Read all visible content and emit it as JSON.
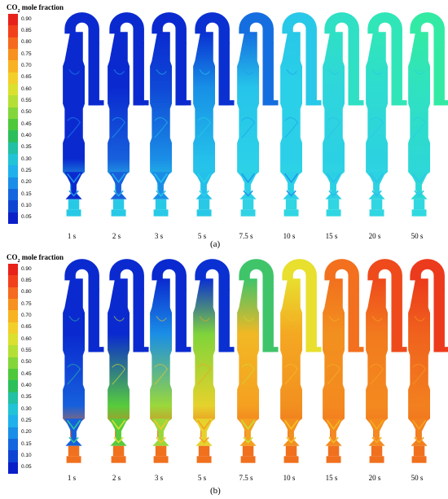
{
  "colorbar": {
    "title_main": "CO",
    "title_sub": "2",
    "title_rest": " mole fraction",
    "ticks": [
      "0.90",
      "0.85",
      "0.80",
      "0.75",
      "0.70",
      "0.65",
      "0.60",
      "0.55",
      "0.50",
      "0.45",
      "0.40",
      "0.35",
      "0.30",
      "0.25",
      "0.20",
      "0.15",
      "0.10",
      "0.05"
    ],
    "colors": [
      "#e8211a",
      "#f2401c",
      "#f56a1e",
      "#f7911f",
      "#f9b222",
      "#f3cf2a",
      "#dbe02f",
      "#b4e035",
      "#83d63a",
      "#4fc83c",
      "#2bbf5c",
      "#22c0a4",
      "#21c3d6",
      "#1fb1ec",
      "#198ee8",
      "#1466de",
      "#0f44d3",
      "#0a1fc8"
    ]
  },
  "times": [
    "1 s",
    "2 s",
    "3 s",
    "5 s",
    "7.5 s",
    "10 s",
    "15 s",
    "20 s",
    "50 s"
  ],
  "panel_a": {
    "label": "(a)",
    "frames": [
      {
        "top": "#0a2ad0",
        "mid": "#0a2ad0",
        "low": "#0a2ad0",
        "base": "#28c9e6",
        "accent": "#1f8fe8"
      },
      {
        "top": "#0a2ad0",
        "mid": "#0a2ad0",
        "low": "#1760dc",
        "base": "#28c9e6",
        "accent": "#20a8ec"
      },
      {
        "top": "#0a2ad0",
        "mid": "#0f48d6",
        "low": "#1a8ee6",
        "base": "#28c9e6",
        "accent": "#25c0ea"
      },
      {
        "top": "#0a30d2",
        "mid": "#1790e6",
        "low": "#24c0ea",
        "base": "#28c9e6",
        "accent": "#2ad0e8"
      },
      {
        "top": "#156ee0",
        "mid": "#26c4ea",
        "low": "#2bd0e8",
        "base": "#30d2e4",
        "accent": "#1f9ae8"
      },
      {
        "top": "#28c8e8",
        "mid": "#2ad0e8",
        "low": "#2bd0e8",
        "base": "#30d6e2",
        "accent": "#1f9ae8"
      },
      {
        "top": "#2fe0c4",
        "mid": "#2ed6dc",
        "low": "#2cd0e4",
        "base": "#30d6e2",
        "accent": "#26c0ea"
      },
      {
        "top": "#30e6b8",
        "mid": "#2edcd0",
        "low": "#2cd2e0",
        "base": "#30d6e2",
        "accent": "#28c4ea"
      },
      {
        "top": "#33eaa4",
        "mid": "#30e2c0",
        "low": "#2dd8d4",
        "base": "#30d8e0",
        "accent": "#2acaea"
      }
    ]
  },
  "panel_b": {
    "label": "(b)",
    "frames": [
      {
        "top": "#0a2ad0",
        "mid": "#0a2ad0",
        "low": "#1660dc",
        "base": "#f0701e",
        "accent": "#2ec0a0"
      },
      {
        "top": "#0a2ad0",
        "mid": "#0a2ad0",
        "low": "#56cc3c",
        "base": "#f0701e",
        "accent": "#d8e030"
      },
      {
        "top": "#0a2ad0",
        "mid": "#1a8ee6",
        "low": "#9ad83a",
        "base": "#f0701e",
        "accent": "#f0c62a"
      },
      {
        "top": "#0a30d2",
        "mid": "#7fd43a",
        "low": "#e6d22c",
        "base": "#f0701e",
        "accent": "#f5a020"
      },
      {
        "top": "#3fc46a",
        "mid": "#f2b824",
        "low": "#f5a020",
        "base": "#f0701e",
        "accent": "#c8e032"
      },
      {
        "top": "#e8df2e",
        "mid": "#f4a822",
        "low": "#f2901f",
        "base": "#f0701e",
        "accent": "#f7c226"
      },
      {
        "top": "#f2701e",
        "mid": "#f2901f",
        "low": "#f48a1f",
        "base": "#f0701e",
        "accent": "#f2b824"
      },
      {
        "top": "#ee4a1c",
        "mid": "#f27a1e",
        "low": "#f48a1f",
        "base": "#f0701e",
        "accent": "#f5a822"
      },
      {
        "top": "#ec3a1c",
        "mid": "#f0621d",
        "low": "#f2801f",
        "base": "#f0701e",
        "accent": "#f5a020"
      }
    ]
  }
}
